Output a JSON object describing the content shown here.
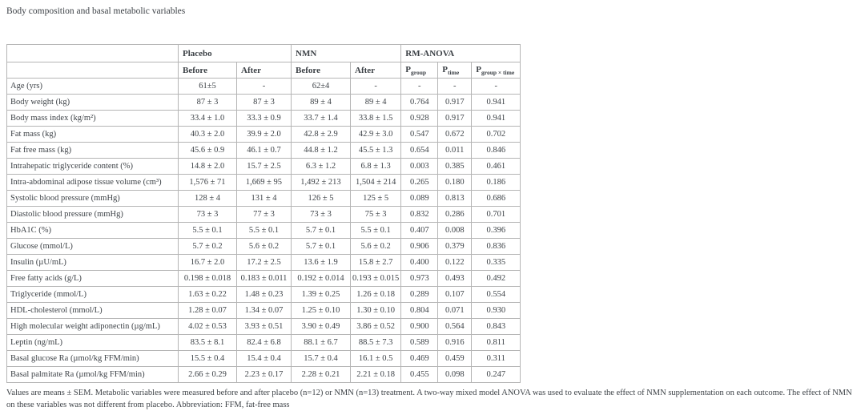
{
  "page": {
    "title": "Body composition and basal metabolic variables",
    "footnote": "Values are means ± SEM. Metabolic variables were measured before and after placebo (n=12) or NMN (n=13) treatment. A two-way mixed model ANOVA was used to evaluate the effect of NMN supplementation on each outcome. The effect of NMN on these variables was not different from placebo. Abbreviation: FFM, fat-free mass"
  },
  "colors": {
    "text": "#3d4247",
    "inner_border": "#b5b5b5",
    "outer_border": "#8f8f8f",
    "background": "#ffffff"
  },
  "table": {
    "group_headers": [
      {
        "label": "",
        "span": 1
      },
      {
        "label": "Placebo",
        "span": 2
      },
      {
        "label": "NMN",
        "span": 2
      },
      {
        "label": "RM-ANOVA",
        "span": 3
      }
    ],
    "sub_headers": [
      {
        "text": "",
        "sub": ""
      },
      {
        "text": "Before",
        "sub": ""
      },
      {
        "text": "After",
        "sub": ""
      },
      {
        "text": "Before",
        "sub": ""
      },
      {
        "text": "After",
        "sub": ""
      },
      {
        "text": "P",
        "sub": "group"
      },
      {
        "text": "P",
        "sub": "time"
      },
      {
        "text": "P",
        "sub": "group × time"
      }
    ],
    "rows": [
      {
        "label": "Age (yrs)",
        "values": [
          "61±5",
          "-",
          "62±4",
          "-",
          "-",
          "-",
          "-"
        ]
      },
      {
        "label": "Body weight (kg)",
        "values": [
          "87 ± 3",
          "87 ± 3",
          "89 ± 4",
          "89 ± 4",
          "0.764",
          "0.917",
          "0.941"
        ]
      },
      {
        "label": "Body mass index (kg/m²)",
        "values": [
          "33.4 ± 1.0",
          "33.3 ± 0.9",
          "33.7 ± 1.4",
          "33.8 ± 1.5",
          "0.928",
          "0.917",
          "0.941"
        ]
      },
      {
        "label": "Fat mass (kg)",
        "values": [
          "40.3 ± 2.0",
          "39.9 ± 2.0",
          "42.8 ± 2.9",
          "42.9 ± 3.0",
          "0.547",
          "0.672",
          "0.702"
        ]
      },
      {
        "label": "Fat free mass (kg)",
        "values": [
          "45.6 ± 0.9",
          "46.1 ± 0.7",
          "44.8 ± 1.2",
          "45.5 ± 1.3",
          "0.654",
          "0.011",
          "0.846"
        ]
      },
      {
        "label": "Intrahepatic triglyceride content (%)",
        "values": [
          "14.8 ± 2.0",
          "15.7 ± 2.5",
          "6.3 ± 1.2",
          "6.8 ± 1.3",
          "0.003",
          "0.385",
          "0.461"
        ]
      },
      {
        "label": "Intra-abdominal adipose tissue volume (cm³)",
        "values": [
          "1,576 ± 71",
          "1,669 ± 95",
          "1,492 ± 213",
          "1,504 ± 214",
          "0.265",
          "0.180",
          "0.186"
        ]
      },
      {
        "label": "Systolic blood pressure (mmHg)",
        "values": [
          "128 ± 4",
          "131 ± 4",
          "126 ± 5",
          "125 ± 5",
          "0.089",
          "0.813",
          "0.686"
        ]
      },
      {
        "label": "Diastolic blood pressure (mmHg)",
        "values": [
          "73 ± 3",
          "77 ± 3",
          "73 ± 3",
          "75 ± 3",
          "0.832",
          "0.286",
          "0.701"
        ]
      },
      {
        "label": "HbA1C (%)",
        "values": [
          "5.5 ± 0.1",
          "5.5 ± 0.1",
          "5.7 ± 0.1",
          "5.5 ± 0.1",
          "0.407",
          "0.008",
          "0.396"
        ]
      },
      {
        "label": "Glucose (mmol/L)",
        "values": [
          "5.7 ± 0.2",
          "5.6 ± 0.2",
          "5.7 ± 0.1",
          "5.6 ± 0.2",
          "0.906",
          "0.379",
          "0.836"
        ]
      },
      {
        "label": "Insulin (µU/mL)",
        "values": [
          "16.7 ± 2.0",
          "17.2 ± 2.5",
          "13.6 ± 1.9",
          "15.8 ± 2.7",
          "0.400",
          "0.122",
          "0.335"
        ]
      },
      {
        "label": "Free fatty acids (g/L)",
        "values": [
          "0.198 ± 0.018",
          "0.183 ± 0.011",
          "0.192 ± 0.014",
          "0.193 ± 0.015",
          "0.973",
          "0.493",
          "0.492"
        ]
      },
      {
        "label": "Triglyceride (mmol/L)",
        "values": [
          "1.63 ± 0.22",
          "1.48 ± 0.23",
          "1.39 ± 0.25",
          "1.26 ± 0.18",
          "0.289",
          "0.107",
          "0.554"
        ]
      },
      {
        "label": "HDL-cholesterol (mmol/L)",
        "values": [
          "1.28 ± 0.07",
          "1.34 ± 0.07",
          "1.25 ± 0.10",
          "1.30 ± 0.10",
          "0.804",
          "0.071",
          "0.930"
        ]
      },
      {
        "label": "High molecular weight adiponectin (µg/mL)",
        "values": [
          "4.02 ± 0.53",
          "3.93 ± 0.51",
          "3.90 ± 0.49",
          "3.86 ± 0.52",
          "0.900",
          "0.564",
          "0.843"
        ]
      },
      {
        "label": "Leptin (ng/mL)",
        "values": [
          "83.5 ± 8.1",
          "82.4 ± 6.8",
          "88.1 ± 6.7",
          "88.5 ± 7.3",
          "0.589",
          "0.916",
          "0.811"
        ]
      },
      {
        "label": "Basal glucose Ra (µmol/kg FFM/min)",
        "values": [
          "15.5 ± 0.4",
          "15.4 ± 0.4",
          "15.7 ± 0.4",
          "16.1 ± 0.5",
          "0.469",
          "0.459",
          "0.311"
        ]
      },
      {
        "label": "Basal palmitate Ra (µmol/kg FFM/min)",
        "values": [
          "2.66 ± 0.29",
          "2.23 ± 0.17",
          "2.28 ± 0.21",
          "2.21 ± 0.18",
          "0.455",
          "0.098",
          "0.247"
        ]
      }
    ]
  }
}
